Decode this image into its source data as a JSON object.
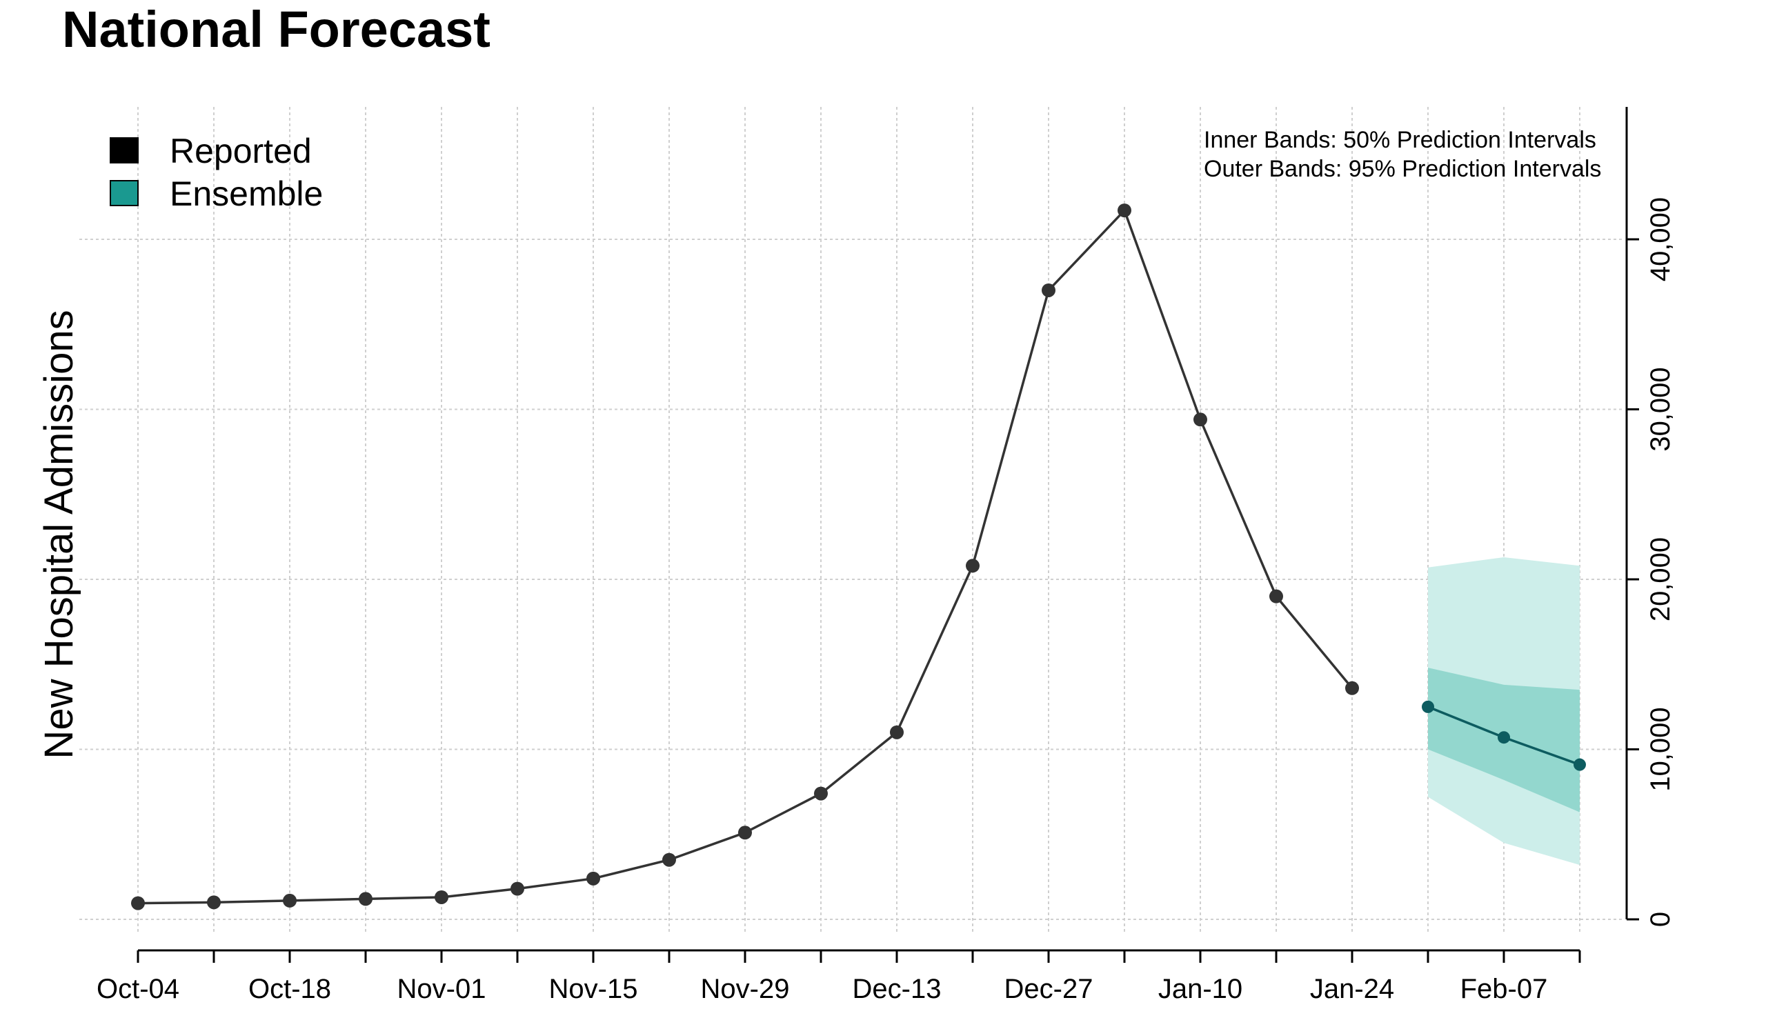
{
  "chart_data": {
    "type": "line",
    "title": "National Forecast",
    "ylabel": "New Hospital Admissions",
    "xlabel": "",
    "ylim": [
      0,
      48000
    ],
    "yticks": [
      0,
      10000,
      20000,
      30000,
      40000
    ],
    "ytick_labels": [
      "0",
      "10,000",
      "20,000",
      "30,000",
      "40,000"
    ],
    "x_index_range": [
      -1,
      19.2
    ],
    "xticks": [
      0,
      1,
      2,
      3,
      4,
      5,
      6,
      7,
      8,
      9,
      10,
      11,
      12,
      13,
      14,
      15,
      16,
      17,
      18,
      19
    ],
    "xtick_labels": {
      "0": "Oct-04",
      "2": "Oct-18",
      "4": "Nov-01",
      "6": "Nov-15",
      "8": "Nov-29",
      "10": "Dec-13",
      "12": "Dec-27",
      "14": "Jan-10",
      "16": "Jan-24",
      "18": "Feb-07"
    },
    "grid": true,
    "legend_position": "top-left",
    "legend": [
      {
        "label": "Reported",
        "color": "#000000"
      },
      {
        "label": "Ensemble",
        "color": "#1a9990"
      }
    ],
    "notes": [
      "Inner Bands: 50% Prediction Intervals",
      "Outer Bands: 95% Prediction Intervals"
    ],
    "series": [
      {
        "name": "Reported",
        "color": "#333333",
        "x": [
          0,
          1,
          2,
          3,
          4,
          5,
          6,
          7,
          8,
          9,
          10,
          11,
          12,
          13,
          14,
          15,
          16
        ],
        "values": [
          950,
          1000,
          1100,
          1200,
          1300,
          1800,
          2400,
          3500,
          5100,
          7400,
          11000,
          20800,
          37000,
          41700,
          29400,
          19000,
          13600
        ]
      },
      {
        "name": "Ensemble",
        "color": "#0d5c60",
        "x": [
          17,
          18,
          19
        ],
        "values": [
          12500,
          10700,
          9100
        ],
        "inner_lower": [
          10000,
          8200,
          6300
        ],
        "inner_upper": [
          14800,
          13800,
          13500
        ],
        "outer_lower": [
          7200,
          4500,
          3200
        ],
        "outer_upper": [
          20700,
          21300,
          20800
        ]
      }
    ],
    "colors": {
      "outer_band": "#cdeeea",
      "inner_band": "#93d7ce",
      "grid": "#cfcfcf",
      "reported_point": "#333333",
      "ensemble_point": "#0d5c60"
    }
  }
}
